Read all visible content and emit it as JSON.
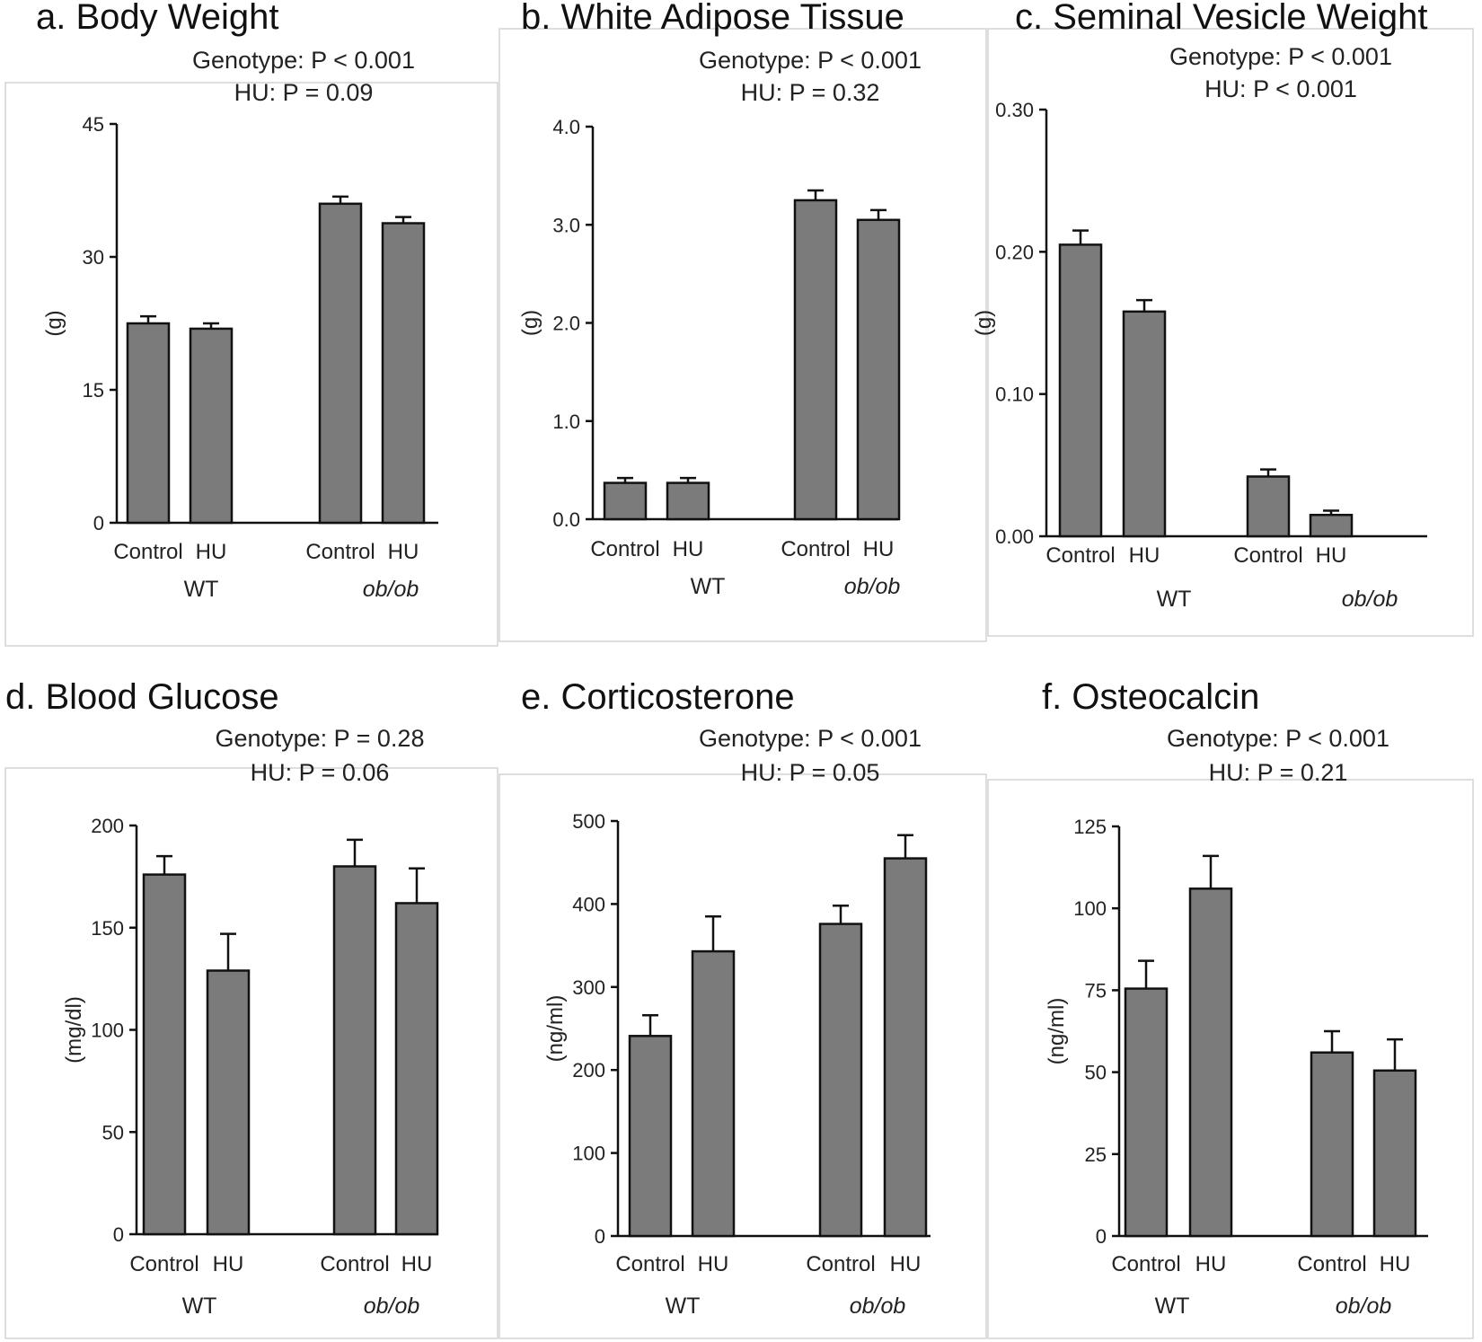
{
  "chart_data": [
    {
      "type": "bar",
      "title": "a. Body Weight",
      "stats": [
        "Genotype:  P < 0.001",
        "HU:  P = 0.09"
      ],
      "ylabel": "(g)",
      "ylim": [
        0,
        45
      ],
      "yticks": [
        "0",
        "15",
        "30",
        "45"
      ],
      "groups": [
        "WT",
        "ob/ob"
      ],
      "categories": [
        "Control",
        "HU",
        "Control",
        "HU"
      ],
      "values": [
        22.5,
        21.9,
        36.0,
        33.8
      ],
      "errors": [
        0.8,
        0.6,
        0.8,
        0.7
      ]
    },
    {
      "type": "bar",
      "title": "b. White Adipose Tissue",
      "stats": [
        "Genotype:  P < 0.001",
        "HU:  P = 0.32"
      ],
      "ylabel": "(g)",
      "ylim": [
        0,
        4.0
      ],
      "yticks": [
        "0.0",
        "1.0",
        "2.0",
        "3.0",
        "4.0"
      ],
      "groups": [
        "WT",
        "ob/ob"
      ],
      "categories": [
        "Control",
        "HU",
        "Control",
        "HU"
      ],
      "values": [
        0.37,
        0.37,
        3.25,
        3.05
      ],
      "errors": [
        0.05,
        0.05,
        0.1,
        0.1
      ]
    },
    {
      "type": "bar",
      "title": "c. Seminal Vesicle Weight",
      "stats": [
        "Genotype:  P < 0.001",
        "HU:  P < 0.001"
      ],
      "ylabel": "(g)",
      "ylim": [
        0,
        0.3
      ],
      "yticks": [
        "0.00",
        "0.10",
        "0.20",
        "0.30"
      ],
      "groups": [
        "WT",
        "ob/ob"
      ],
      "categories": [
        "Control",
        "HU",
        "Control",
        "HU"
      ],
      "values": [
        0.205,
        0.158,
        0.042,
        0.015
      ],
      "errors": [
        0.01,
        0.008,
        0.005,
        0.003
      ]
    },
    {
      "type": "bar",
      "title": "d. Blood Glucose",
      "stats": [
        "Genotype:  P = 0.28",
        "HU:  P = 0.06"
      ],
      "ylabel": "(mg/dl)",
      "ylim": [
        0,
        200
      ],
      "yticks": [
        "0",
        "50",
        "100",
        "150",
        "200"
      ],
      "groups": [
        "WT",
        "ob/ob"
      ],
      "categories": [
        "Control",
        "HU",
        "Control",
        "HU"
      ],
      "values": [
        176,
        129,
        180,
        162
      ],
      "errors": [
        9,
        18,
        13,
        17
      ]
    },
    {
      "type": "bar",
      "title": "e. Corticosterone",
      "stats": [
        "Genotype:  P < 0.001",
        "HU:  P = 0.05"
      ],
      "ylabel": "(ng/ml)",
      "ylim": [
        0,
        500
      ],
      "yticks": [
        "0",
        "100",
        "200",
        "300",
        "400",
        "500"
      ],
      "groups": [
        "WT",
        "ob/ob"
      ],
      "categories": [
        "Control",
        "HU",
        "Control",
        "HU"
      ],
      "values": [
        241,
        343,
        376,
        455
      ],
      "errors": [
        25,
        42,
        22,
        28
      ]
    },
    {
      "type": "bar",
      "title": "f. Osteocalcin",
      "stats": [
        "Genotype:  P < 0.001",
        "HU:  P = 0.21"
      ],
      "ylabel": "(ng/ml)",
      "ylim": [
        0,
        125
      ],
      "yticks": [
        "0",
        "25",
        "50",
        "75",
        "100",
        "125"
      ],
      "groups": [
        "WT",
        "ob/ob"
      ],
      "categories": [
        "Control",
        "HU",
        "Control",
        "HU"
      ],
      "values": [
        75.5,
        106,
        56,
        50.5
      ],
      "errors": [
        8.5,
        10,
        6.5,
        9.5
      ]
    }
  ]
}
